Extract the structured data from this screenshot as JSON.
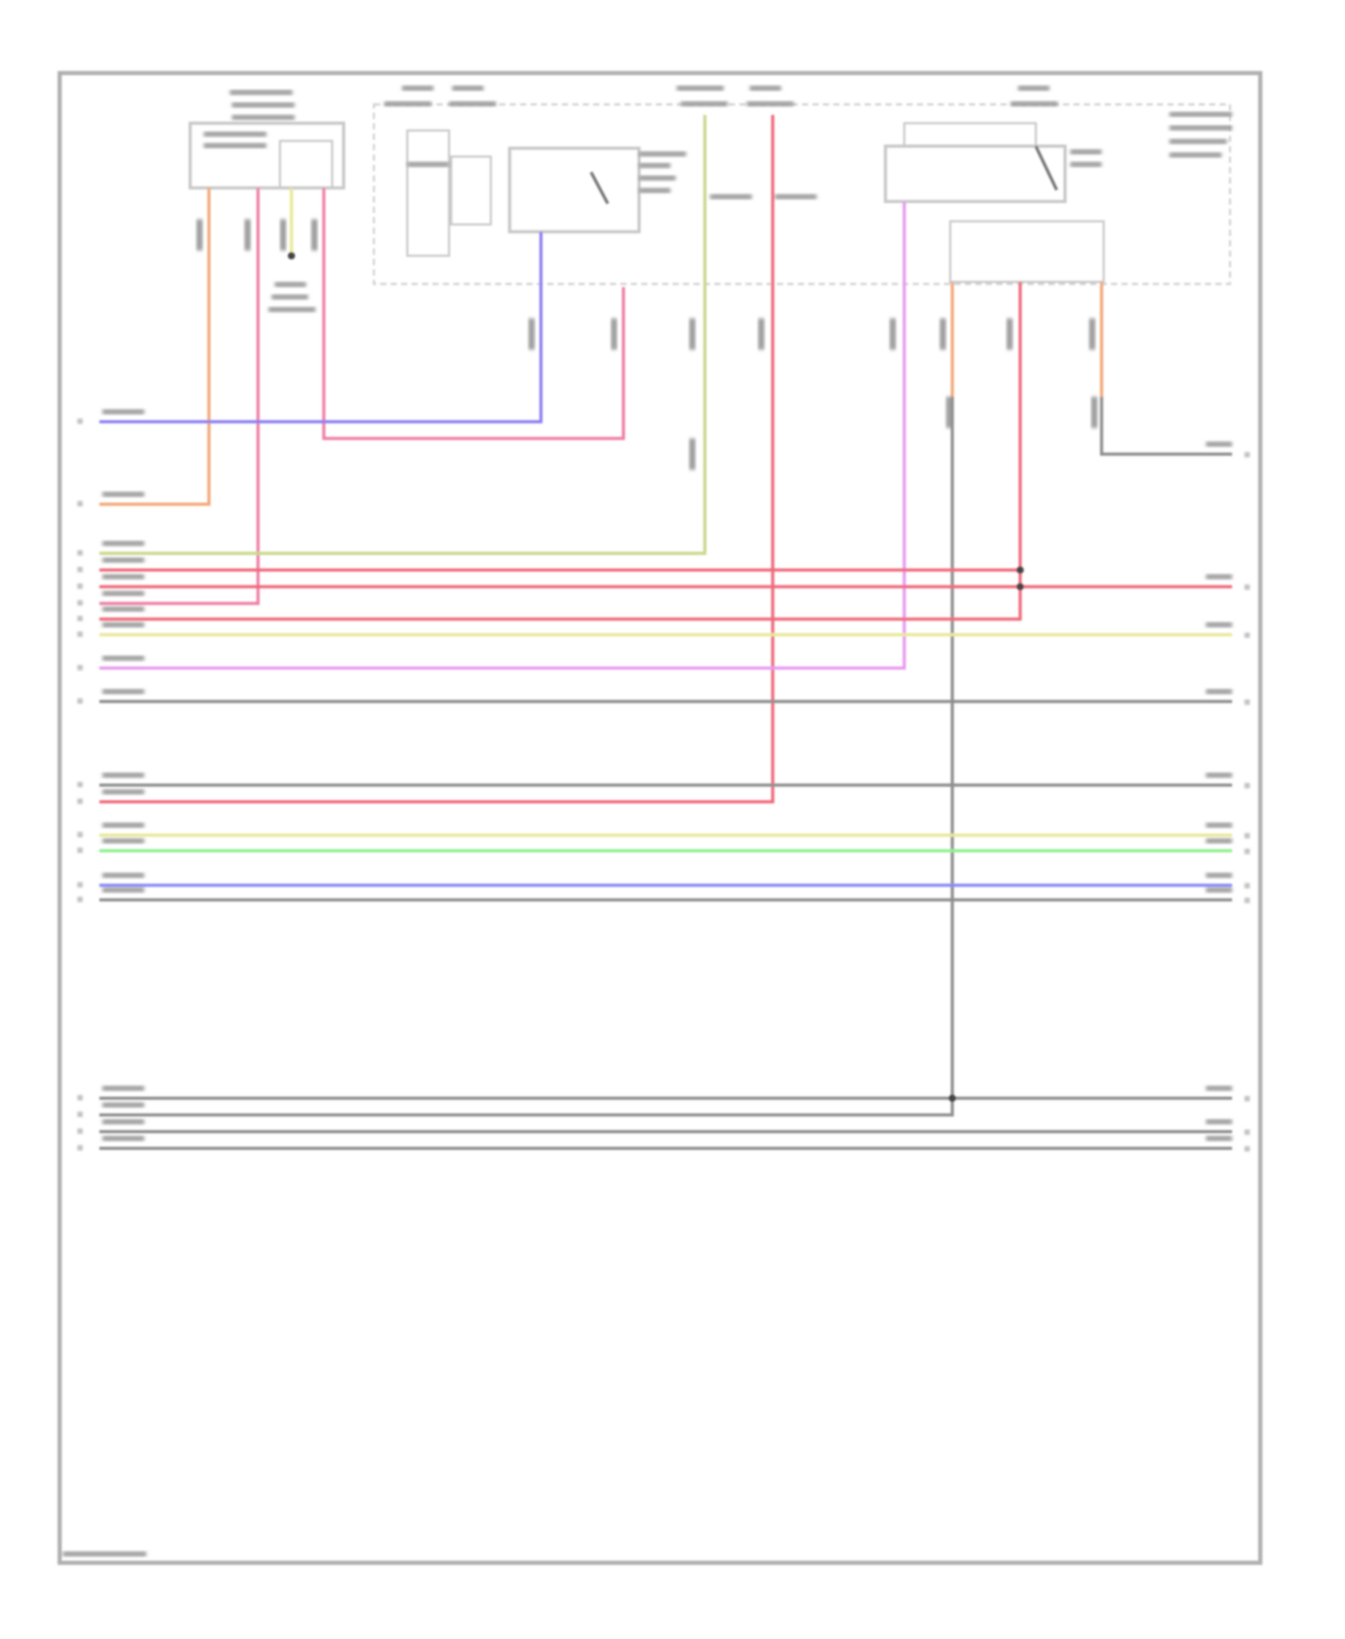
{
  "diagram": {
    "wire_colors": {
      "orange": "#f2a878",
      "pink": "#ef7fa6",
      "red": "#f06a7a",
      "purple": "#8c7ff0",
      "yellow": "#e8e89a",
      "yellow_green": "#c9d88a",
      "violet": "#e79af0",
      "gray": "#8e8e8e",
      "green": "#8ff08f",
      "blue": "#8a8af5"
    },
    "frame_color": "#b0b0b0",
    "component_outline_color": "#c8c8c8"
  }
}
